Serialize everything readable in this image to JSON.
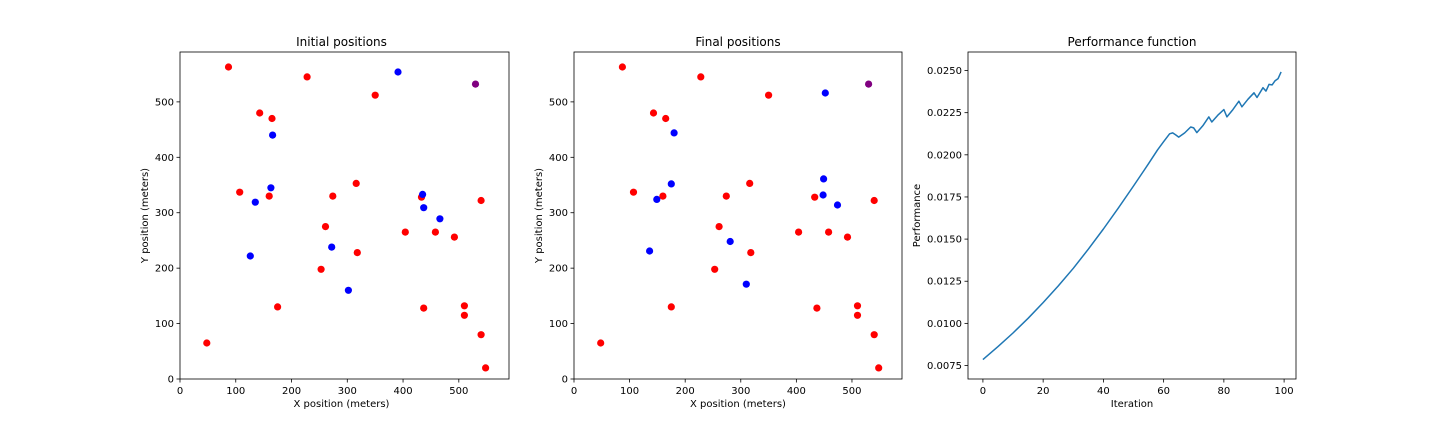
{
  "chart_data": [
    {
      "type": "scatter",
      "title": "Initial positions",
      "xlabel": "X position (meters)",
      "ylabel": "Y position (meters)",
      "xlim": [
        0,
        590
      ],
      "ylim": [
        0,
        590
      ],
      "xticks": [
        0,
        100,
        200,
        300,
        400,
        500
      ],
      "yticks": [
        0,
        100,
        200,
        300,
        400,
        500
      ],
      "grid": false,
      "series": [
        {
          "color": "#ff0000",
          "points": [
            [
              87,
              563
            ],
            [
              228,
              545
            ],
            [
              350,
              512
            ],
            [
              143,
              480
            ],
            [
              165,
              470
            ],
            [
              107,
              337
            ],
            [
              160,
              330
            ],
            [
              274,
              330
            ],
            [
              316,
              353
            ],
            [
              540,
              322
            ],
            [
              433,
              328
            ],
            [
              261,
              275
            ],
            [
              404,
              265
            ],
            [
              458,
              265
            ],
            [
              492,
              256
            ],
            [
              318,
              228
            ],
            [
              253,
              198
            ],
            [
              175,
              130
            ],
            [
              510,
              132
            ],
            [
              437,
              128
            ],
            [
              510,
              115
            ],
            [
              540,
              80
            ],
            [
              48,
              65
            ],
            [
              548,
              20
            ]
          ]
        },
        {
          "color": "#0000ff",
          "points": [
            [
              391,
              554
            ],
            [
              166,
              440
            ],
            [
              163,
              345
            ],
            [
              135,
              319
            ],
            [
              435,
              333
            ],
            [
              437,
              309
            ],
            [
              466,
              289
            ],
            [
              126,
              222
            ],
            [
              272,
              238
            ],
            [
              302,
              160
            ]
          ]
        },
        {
          "color": "#800080",
          "points": [
            [
              530,
              532
            ]
          ]
        }
      ]
    },
    {
      "type": "scatter",
      "title": "Final positions",
      "xlabel": "X position (meters)",
      "ylabel": "Y position (meters)",
      "xlim": [
        0,
        590
      ],
      "ylim": [
        0,
        590
      ],
      "xticks": [
        0,
        100,
        200,
        300,
        400,
        500
      ],
      "yticks": [
        0,
        100,
        200,
        300,
        400,
        500
      ],
      "grid": false,
      "series": [
        {
          "color": "#ff0000",
          "points": [
            [
              87,
              563
            ],
            [
              228,
              545
            ],
            [
              350,
              512
            ],
            [
              143,
              480
            ],
            [
              165,
              470
            ],
            [
              107,
              337
            ],
            [
              160,
              330
            ],
            [
              274,
              330
            ],
            [
              316,
              353
            ],
            [
              540,
              322
            ],
            [
              433,
              328
            ],
            [
              261,
              275
            ],
            [
              404,
              265
            ],
            [
              458,
              265
            ],
            [
              492,
              256
            ],
            [
              318,
              228
            ],
            [
              253,
              198
            ],
            [
              175,
              130
            ],
            [
              510,
              132
            ],
            [
              437,
              128
            ],
            [
              510,
              115
            ],
            [
              540,
              80
            ],
            [
              48,
              65
            ],
            [
              548,
              20
            ]
          ]
        },
        {
          "color": "#0000ff",
          "points": [
            [
              452,
              516
            ],
            [
              180,
              444
            ],
            [
              175,
              352
            ],
            [
              149,
              324
            ],
            [
              449,
              361
            ],
            [
              448,
              332
            ],
            [
              474,
              314
            ],
            [
              136,
              231
            ],
            [
              281,
              248
            ],
            [
              310,
              171
            ]
          ]
        },
        {
          "color": "#800080",
          "points": [
            [
              530,
              532
            ]
          ]
        }
      ]
    },
    {
      "type": "line",
      "title": "Performance function",
      "xlabel": "Iteration",
      "ylabel": "Performance",
      "xlim": [
        -4.95,
        103.95
      ],
      "ylim": [
        0.0067,
        0.0261
      ],
      "xticks": [
        0,
        20,
        40,
        60,
        80,
        100
      ],
      "yticks": [
        0.0075,
        0.01,
        0.0125,
        0.015,
        0.0175,
        0.02,
        0.0225,
        0.025
      ],
      "ytick_labels": [
        "0.0075",
        "0.0100",
        "0.0125",
        "0.0150",
        "0.0175",
        "0.0200",
        "0.0225",
        "0.0250"
      ],
      "grid": false,
      "series": [
        {
          "color": "#1f77b4",
          "points": [
            [
              0,
              0.00785
            ],
            [
              5,
              0.00862
            ],
            [
              10,
              0.00943
            ],
            [
              15,
              0.0103
            ],
            [
              20,
              0.01123
            ],
            [
              25,
              0.01222
            ],
            [
              30,
              0.01327
            ],
            [
              35,
              0.0144
            ],
            [
              40,
              0.0156
            ],
            [
              45,
              0.01685
            ],
            [
              50,
              0.01815
            ],
            [
              55,
              0.01948
            ],
            [
              58,
              0.0203
            ],
            [
              60,
              0.02078
            ],
            [
              62,
              0.02125
            ],
            [
              63,
              0.0213
            ],
            [
              64,
              0.02118
            ],
            [
              65,
              0.02105
            ],
            [
              67,
              0.0213
            ],
            [
              69,
              0.02165
            ],
            [
              70,
              0.0216
            ],
            [
              71,
              0.02132
            ],
            [
              73,
              0.02172
            ],
            [
              75,
              0.02225
            ],
            [
              76,
              0.02195
            ],
            [
              78,
              0.02235
            ],
            [
              80,
              0.02268
            ],
            [
              81,
              0.02225
            ],
            [
              83,
              0.02268
            ],
            [
              85,
              0.02318
            ],
            [
              86,
              0.02285
            ],
            [
              88,
              0.0233
            ],
            [
              90,
              0.02368
            ],
            [
              91,
              0.0234
            ],
            [
              93,
              0.02398
            ],
            [
              94,
              0.02378
            ],
            [
              95,
              0.02418
            ],
            [
              96,
              0.02415
            ],
            [
              97,
              0.0244
            ],
            [
              98,
              0.02452
            ],
            [
              99,
              0.02492
            ]
          ]
        }
      ]
    }
  ]
}
